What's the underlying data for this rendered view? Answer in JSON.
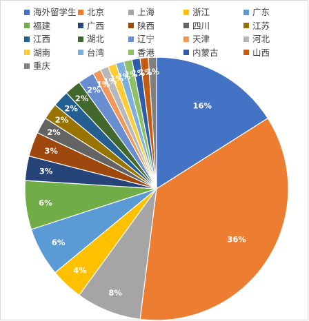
{
  "chart_data": {
    "type": "pie",
    "legend_position": "top",
    "series": [
      {
        "name": "海外留学生",
        "value": 16,
        "label": "16%",
        "color": "#4472c4"
      },
      {
        "name": "北京",
        "value": 36,
        "label": "36%",
        "color": "#ed7d31"
      },
      {
        "name": "上海",
        "value": 8,
        "label": "8%",
        "color": "#a5a5a5"
      },
      {
        "name": "浙江",
        "value": 4,
        "label": "4%",
        "color": "#ffc000"
      },
      {
        "name": "广东",
        "value": 6,
        "label": "6%",
        "color": "#5b9bd5"
      },
      {
        "name": "福建",
        "value": 6,
        "label": "6%",
        "color": "#70ad47"
      },
      {
        "name": "广西",
        "value": 3,
        "label": "3%",
        "color": "#264478"
      },
      {
        "name": "陕西",
        "value": 3,
        "label": "3%",
        "color": "#9e480e"
      },
      {
        "name": "四川",
        "value": 2,
        "label": "2%",
        "color": "#636363"
      },
      {
        "name": "江苏",
        "value": 2,
        "label": "2%",
        "color": "#997300"
      },
      {
        "name": "江西",
        "value": 2,
        "label": "2%",
        "color": "#255e91"
      },
      {
        "name": "湖北",
        "value": 2,
        "label": "2%",
        "color": "#43682b"
      },
      {
        "name": "辽宁",
        "value": 2,
        "label": "2%",
        "color": "#698ed0"
      },
      {
        "name": "天津",
        "value": 1,
        "label": "1%",
        "color": "#f1975a"
      },
      {
        "name": "河北",
        "value": 1,
        "label": "1%",
        "color": "#b7b7b7"
      },
      {
        "name": "湖南",
        "value": 1,
        "label": "1%",
        "color": "#ffcd33"
      },
      {
        "name": "台湾",
        "value": 1,
        "label": "1%",
        "color": "#7cafdd"
      },
      {
        "name": "香港",
        "value": 1,
        "label": "1%",
        "color": "#8cc168"
      },
      {
        "name": "内蒙古",
        "value": 1,
        "label": "1%",
        "color": "#2e5ca8"
      },
      {
        "name": "山西",
        "value": 1,
        "label": "1%",
        "color": "#c55a11"
      },
      {
        "name": "重庆",
        "value": 1,
        "label": "1%",
        "color": "#7f7f7f"
      }
    ]
  }
}
